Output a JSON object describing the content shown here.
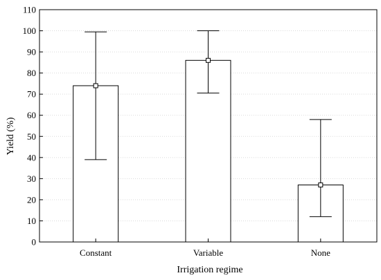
{
  "chart_data": {
    "type": "bar",
    "title": "",
    "xlabel": "Irrigation regime",
    "ylabel": "Yield (%)",
    "ylim": [
      0,
      110
    ],
    "yticks": [
      0,
      10,
      20,
      30,
      40,
      50,
      60,
      70,
      80,
      90,
      100,
      110
    ],
    "categories": [
      "Constant",
      "Variable",
      "None"
    ],
    "values": [
      74,
      86,
      27
    ],
    "error_low": [
      39,
      70.5,
      12
    ],
    "error_high": [
      99.5,
      100,
      58
    ],
    "grid": true,
    "colors": {
      "bar_fill": "#ffffff",
      "bar_stroke": "#000000",
      "grid": "#d9d9d9",
      "axis": "#000000"
    }
  }
}
